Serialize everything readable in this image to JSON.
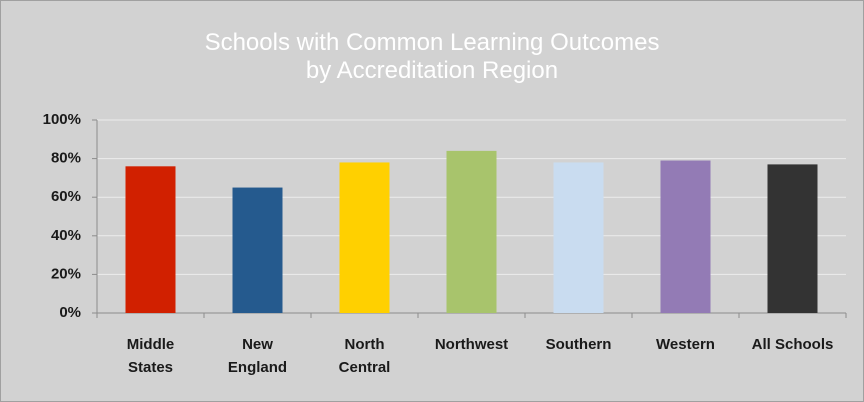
{
  "chart_data": {
    "type": "bar",
    "title": "Schools with Common Learning Outcomes\nby Accreditation Region",
    "categories": [
      "Middle\nStates",
      "New\nEngland",
      "North\nCentral",
      "Northwest",
      "Southern",
      "Western",
      "All Schools"
    ],
    "values": [
      76,
      65,
      78,
      84,
      78,
      79,
      77
    ],
    "colors": [
      "#d12000",
      "#255a8e",
      "#ffd000",
      "#a8c46c",
      "#c9dcf0",
      "#937bb5",
      "#333333"
    ],
    "ylim": [
      0,
      100
    ],
    "yticks": [
      {
        "value": 0,
        "label": "0%"
      },
      {
        "value": 20,
        "label": "20%"
      },
      {
        "value": 40,
        "label": "40%"
      },
      {
        "value": 60,
        "label": "60%"
      },
      {
        "value": 80,
        "label": "80%"
      },
      {
        "value": 100,
        "label": "100%"
      }
    ],
    "grid": true
  }
}
